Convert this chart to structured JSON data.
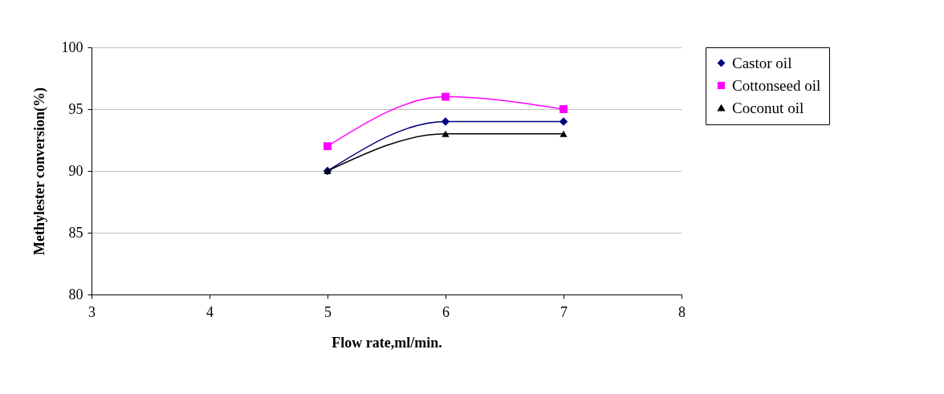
{
  "chart_data": {
    "type": "line",
    "xlabel": "Flow rate,ml/min.",
    "ylabel": "Methylester conversion(%)",
    "x": [
      5,
      6,
      7
    ],
    "series": [
      {
        "name": "Castor oil",
        "color": "#000080",
        "marker": "diamond",
        "values": [
          90,
          94,
          94
        ]
      },
      {
        "name": "Cottonseed oil",
        "color": "#ff00ff",
        "marker": "square",
        "values": [
          92,
          96,
          95
        ]
      },
      {
        "name": "Coconut oil",
        "color": "#000000",
        "marker": "triangle",
        "values": [
          90,
          93,
          93
        ]
      }
    ],
    "xlim": [
      3,
      8
    ],
    "xticks": [
      3,
      4,
      5,
      6,
      7,
      8
    ],
    "ylim": [
      80,
      100
    ],
    "yticks": [
      80,
      85,
      90,
      95,
      100
    ],
    "grid": "y",
    "legend": "right"
  }
}
